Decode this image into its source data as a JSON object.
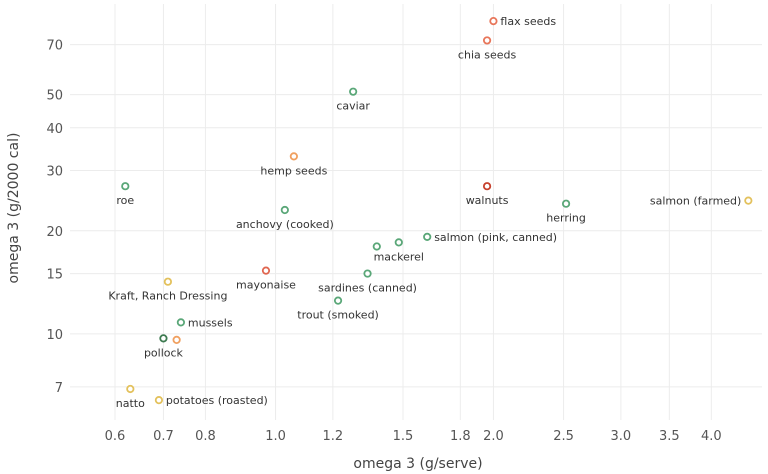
{
  "chart_data": {
    "type": "scatter",
    "title": "",
    "xlabel": "omega 3 (g/serve)",
    "ylabel": "omega 3 (g/2000 cal)",
    "x_scale": "log",
    "y_scale": "log",
    "xlim": [
      0.52,
      4.7
    ],
    "ylim": [
      5.6,
      92
    ],
    "x_ticks": [
      "0.6",
      "0.7",
      "0.8",
      "1.0",
      "1.2",
      "1.5",
      "1.8",
      "2.0",
      "2.5",
      "3.0",
      "3.5",
      "4.0"
    ],
    "y_ticks": [
      "7",
      "10",
      "15",
      "20",
      "30",
      "40",
      "50",
      "70"
    ],
    "grid": true,
    "points": [
      {
        "name": "flax seeds",
        "x": 2.0,
        "y": 82,
        "color": "#e8765a",
        "label_pos": "right"
      },
      {
        "name": "chia seeds",
        "x": 1.96,
        "y": 72,
        "color": "#e8765a",
        "label_pos": "below"
      },
      {
        "name": "caviar",
        "x": 1.28,
        "y": 51,
        "color": "#5aa778",
        "label_pos": "below"
      },
      {
        "name": "hemp seeds",
        "x": 1.06,
        "y": 33,
        "color": "#f0a060",
        "label_pos": "below"
      },
      {
        "name": "roe",
        "x": 0.62,
        "y": 27,
        "color": "#5aa778",
        "label_pos": "below"
      },
      {
        "name": "walnuts",
        "x": 1.96,
        "y": 27,
        "color": "#c6412d",
        "label_pos": "below"
      },
      {
        "name": "herring",
        "x": 2.52,
        "y": 24,
        "color": "#5aa778",
        "label_pos": "below"
      },
      {
        "name": "salmon (farmed)",
        "x": 4.5,
        "y": 24.5,
        "color": "#e3c15c",
        "label_pos": "left"
      },
      {
        "name": "anchovy (cooked)",
        "x": 1.03,
        "y": 23,
        "color": "#5aa778",
        "label_pos": "below"
      },
      {
        "name": "salmon (pink, canned)",
        "x": 1.62,
        "y": 19.2,
        "color": "#5aa778",
        "label_pos": "right"
      },
      {
        "name": "mackerel",
        "x": 1.48,
        "y": 18.5,
        "color": "#5aa778",
        "label_pos": "below"
      },
      {
        "name": "",
        "x": 1.38,
        "y": 18.0,
        "color": "#5aa778",
        "label_pos": "none"
      },
      {
        "name": "mayonaise",
        "x": 0.97,
        "y": 15.3,
        "color": "#e06650",
        "label_pos": "below"
      },
      {
        "name": "sardines (canned)",
        "x": 1.34,
        "y": 15.0,
        "color": "#5aa778",
        "label_pos": "below"
      },
      {
        "name": "Kraft, Ranch Dressing",
        "x": 0.71,
        "y": 14.2,
        "color": "#e3c15c",
        "label_pos": "below"
      },
      {
        "name": "trout (smoked)",
        "x": 1.22,
        "y": 12.5,
        "color": "#5aa778",
        "label_pos": "below"
      },
      {
        "name": "mussels",
        "x": 0.74,
        "y": 10.8,
        "color": "#5aa778",
        "label_pos": "right"
      },
      {
        "name": "pollock",
        "x": 0.7,
        "y": 9.7,
        "color": "#3d7a50",
        "label_pos": "below"
      },
      {
        "name": "",
        "x": 0.73,
        "y": 9.6,
        "color": "#f0a060",
        "label_pos": "none"
      },
      {
        "name": "natto",
        "x": 0.63,
        "y": 6.9,
        "color": "#e3c15c",
        "label_pos": "below"
      },
      {
        "name": "potatoes (roasted)",
        "x": 0.69,
        "y": 6.4,
        "color": "#e3c15c",
        "label_pos": "right"
      }
    ]
  }
}
